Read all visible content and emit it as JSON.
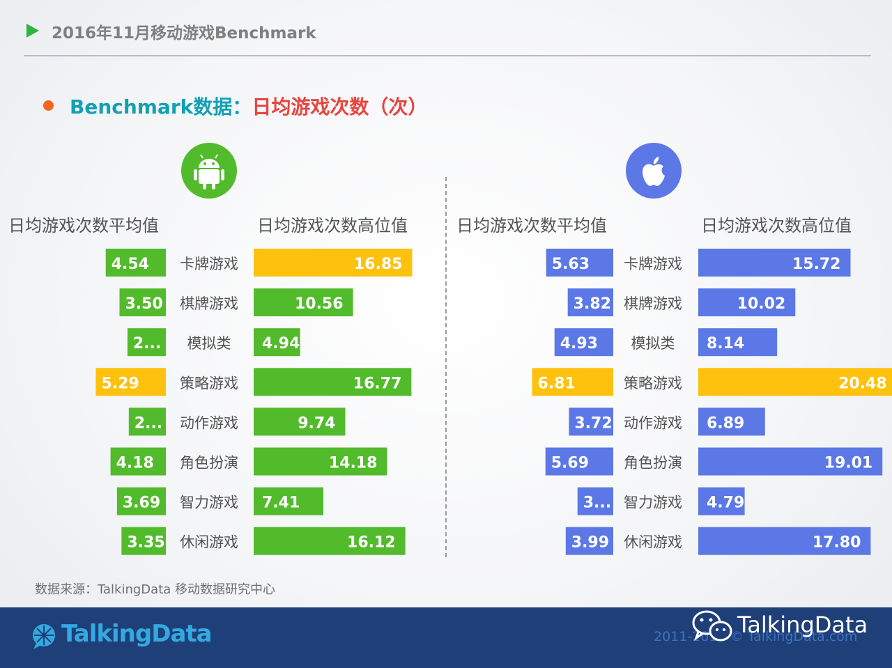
{
  "header": {
    "title": "2016年11月移动游戏Benchmark"
  },
  "subtitle": {
    "prefix": "Benchmark数据：",
    "metric": "日均游戏次数（次）"
  },
  "icons": {
    "android": "android-icon",
    "apple": "apple-icon"
  },
  "colors": {
    "green": "#52bb2b",
    "yellow": "#fec10e",
    "blue": "#5b78e6",
    "label": "#525252",
    "header_green": "#2fb53d",
    "bullet": "#f0661e",
    "teal": "#14a0b3",
    "red": "#e84440",
    "footer": "#1f3f78"
  },
  "columns": {
    "android_avg": "日均游戏次数平均值",
    "android_high": "日均游戏次数高位值",
    "ios_avg": "日均游戏次数平均值",
    "ios_high": "日均游戏次数高位值"
  },
  "chart_data": [
    {
      "type": "bar",
      "platform": "Android",
      "categories": [
        "卡牌游戏",
        "棋牌游戏",
        "模拟类",
        "策略游戏",
        "动作游戏",
        "角色扮演",
        "智力游戏",
        "休闲游戏"
      ],
      "series": [
        {
          "name": "日均游戏次数平均值",
          "values": [
            4.54,
            3.5,
            2.9,
            5.29,
            2.8,
            4.18,
            3.69,
            3.35
          ],
          "labels": [
            "4.54",
            "3.50",
            "2...",
            "5.29",
            "2...",
            "4.18",
            "3.69",
            "3.35"
          ],
          "highlight_index": 3,
          "direction": "left"
        },
        {
          "name": "日均游戏次数高位值",
          "values": [
            16.85,
            10.56,
            4.94,
            16.77,
            9.74,
            14.18,
            7.41,
            16.12
          ],
          "labels": [
            "16.85",
            "10.56",
            "4.94",
            "16.77",
            "9.74",
            "14.18",
            "7.41",
            "16.12"
          ],
          "highlight_index": 0,
          "direction": "right"
        }
      ]
    },
    {
      "type": "bar",
      "platform": "iOS",
      "categories": [
        "卡牌游戏",
        "棋牌游戏",
        "模拟类",
        "策略游戏",
        "动作游戏",
        "角色扮演",
        "智力游戏",
        "休闲游戏"
      ],
      "series": [
        {
          "name": "日均游戏次数平均值",
          "values": [
            5.63,
            3.82,
            4.93,
            6.81,
            3.72,
            5.69,
            3.0,
            3.99
          ],
          "labels": [
            "5.63",
            "3.82",
            "4.93",
            "6.81",
            "3.72",
            "5.69",
            "3...",
            "3.99"
          ],
          "highlight_index": 3,
          "direction": "left"
        },
        {
          "name": "日均游戏次数高位值",
          "values": [
            15.72,
            10.02,
            8.14,
            20.48,
            6.89,
            19.01,
            4.79,
            17.8
          ],
          "labels": [
            "15.72",
            "10.02",
            "8.14",
            "20.48",
            "6.89",
            "19.01",
            "4.79",
            "17.80"
          ],
          "highlight_index": 3,
          "direction": "right"
        }
      ]
    }
  ],
  "source": "数据来源：TalkingData 移动数据研究中心",
  "footer": {
    "logo": "TalkingData",
    "copyright": "2011-2016 © TalkingData.com",
    "wechat": "TalkingData"
  }
}
